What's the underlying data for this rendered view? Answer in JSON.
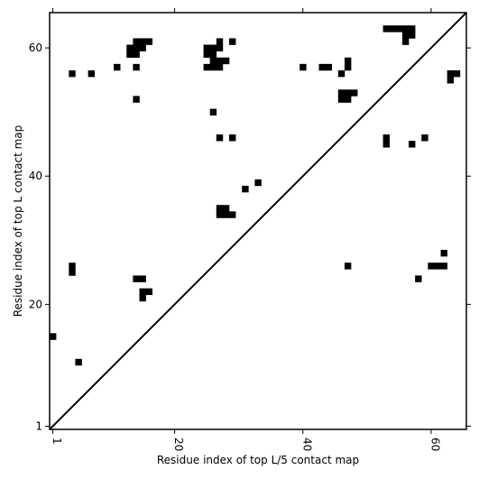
{
  "chart_data": {
    "type": "heatmap",
    "title": "",
    "xlabel": "Residue index of top L/5 contact map",
    "ylabel": "Residue index of top L contact map",
    "xlim": [
      0.5,
      65.5
    ],
    "ylim": [
      0.5,
      65.5
    ],
    "x_ticks": [
      1,
      20,
      40,
      60
    ],
    "y_ticks": [
      1,
      20,
      40,
      60
    ],
    "diagonal": true,
    "grid": false,
    "colors": {
      "contact": "#000000",
      "background": "#ffffff"
    },
    "upper_triangle": {
      "description": "",
      "cells": [
        [
          1,
          15
        ],
        [
          5,
          11
        ],
        [
          4,
          25
        ],
        [
          4,
          26
        ],
        [
          14,
          24
        ],
        [
          15,
          24
        ],
        [
          15,
          22
        ],
        [
          16,
          22
        ],
        [
          15,
          21
        ],
        [
          27,
          35
        ],
        [
          28,
          35
        ],
        [
          27,
          34
        ],
        [
          28,
          34
        ],
        [
          29,
          34
        ],
        [
          31,
          38
        ],
        [
          33,
          39
        ],
        [
          47,
          26
        ],
        [
          53,
          46
        ],
        [
          53,
          45
        ],
        [
          57,
          45
        ],
        [
          59,
          46
        ],
        [
          58,
          24
        ],
        [
          60,
          26
        ],
        [
          61,
          26
        ],
        [
          62,
          26
        ],
        [
          62,
          28
        ]
      ]
    },
    "lower_triangle": {
      "cells": [
        [
          4,
          56
        ],
        [
          7,
          56
        ],
        [
          11,
          57
        ],
        [
          13,
          60
        ],
        [
          14,
          60
        ],
        [
          13,
          59
        ],
        [
          14,
          59
        ],
        [
          14,
          61
        ],
        [
          15,
          61
        ],
        [
          16,
          61
        ],
        [
          15,
          60
        ],
        [
          14,
          57
        ],
        [
          14,
          52
        ],
        [
          25,
          60
        ],
        [
          26,
          60
        ],
        [
          25,
          59
        ],
        [
          26,
          59
        ],
        [
          27,
          61
        ],
        [
          27,
          60
        ],
        [
          25,
          57
        ],
        [
          26,
          57
        ],
        [
          27,
          57
        ],
        [
          26,
          58
        ],
        [
          27,
          58
        ],
        [
          28,
          58
        ],
        [
          29,
          61
        ],
        [
          26,
          50
        ],
        [
          27,
          46
        ],
        [
          29,
          46
        ],
        [
          40,
          57
        ],
        [
          43,
          57
        ],
        [
          44,
          57
        ],
        [
          46,
          56
        ],
        [
          47,
          58
        ],
        [
          47,
          57
        ],
        [
          46,
          53
        ],
        [
          47,
          53
        ],
        [
          48,
          53
        ],
        [
          46,
          52
        ],
        [
          47,
          52
        ],
        [
          53,
          63
        ],
        [
          54,
          63
        ],
        [
          55,
          63
        ],
        [
          56,
          63
        ],
        [
          57,
          63
        ],
        [
          56,
          62
        ],
        [
          57,
          62
        ],
        [
          56,
          61
        ],
        [
          63,
          56
        ],
        [
          64,
          56
        ],
        [
          63,
          55
        ]
      ]
    }
  }
}
